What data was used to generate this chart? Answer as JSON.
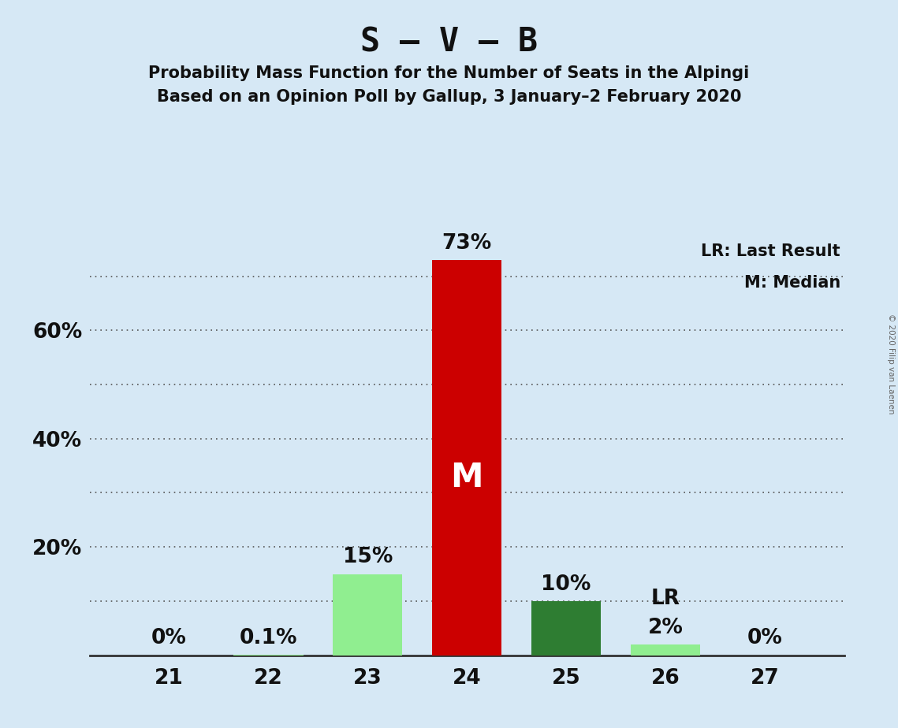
{
  "title": "S – V – B",
  "subtitle1": "Probability Mass Function for the Number of Seats in the Alpingi",
  "subtitle2": "Based on an Opinion Poll by Gallup, 3 January–2 February 2020",
  "copyright": "© 2020 Filip van Laenen",
  "seats": [
    21,
    22,
    23,
    24,
    25,
    26,
    27
  ],
  "probabilities": [
    0.0,
    0.1,
    15.0,
    73.0,
    10.0,
    2.0,
    0.0
  ],
  "bar_colors": [
    "#90EE90",
    "#90EE90",
    "#90EE90",
    "#CC0000",
    "#2E7D32",
    "#90EE90",
    "#90EE90"
  ],
  "labels": [
    "0%",
    "0.1%",
    "15%",
    "73%",
    "10%",
    "2%",
    "0%"
  ],
  "median_seat": 24,
  "lr_seat": 26,
  "background_color": "#D6E8F5",
  "ylim": [
    0,
    78
  ],
  "yticks": [
    10,
    20,
    30,
    40,
    50,
    60,
    70
  ],
  "ytick_labels": [
    "",
    "20%",
    "",
    "40%",
    "",
    "60%",
    ""
  ],
  "legend_lr": "LR: Last Result",
  "legend_m": "M: Median",
  "title_fontsize": 30,
  "subtitle_fontsize": 15,
  "axis_fontsize": 19,
  "bar_label_fontsize": 19,
  "legend_fontsize": 15
}
